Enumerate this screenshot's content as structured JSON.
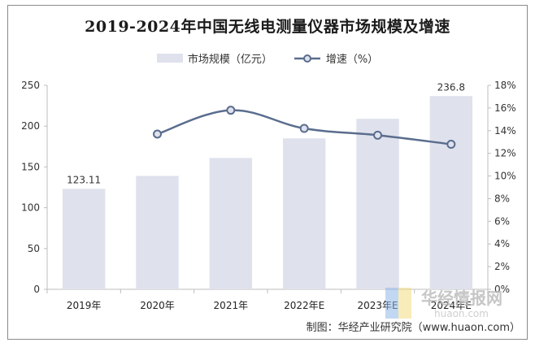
{
  "title": "2019-2024年中国无线电测量仪器市场规模及增速",
  "legend": {
    "bar_label": "市场规模（亿元）",
    "line_label": "增速（%）"
  },
  "source": "制图：华经产业研究院（www.huaon.com）",
  "watermark": {
    "cn": "华经情报网",
    "en": "huaon.com"
  },
  "colors": {
    "bar": "#dfe1ec",
    "line": "#5a6d8e",
    "marker_fill": "#dfe1ec"
  },
  "chart_data": {
    "type": "bar",
    "categories": [
      "2019年",
      "2020年",
      "2021年",
      "2022年E",
      "2023年E",
      "2024年E"
    ],
    "series": [
      {
        "name": "市场规模（亿元）",
        "type": "bar",
        "axis": "left",
        "values": [
          123.11,
          139,
          161,
          185,
          209,
          236.8
        ],
        "data_labels": [
          "123.11",
          null,
          null,
          null,
          null,
          "236.8"
        ]
      },
      {
        "name": "增速（%）",
        "type": "line",
        "axis": "right",
        "values": [
          null,
          13.7,
          15.8,
          14.2,
          13.6,
          12.8
        ]
      }
    ],
    "y_left": {
      "min": 0,
      "max": 250,
      "ticks": [
        "0",
        "50",
        "100",
        "150",
        "200",
        "250"
      ]
    },
    "y_right": {
      "min": 0,
      "max": 18,
      "ticks": [
        "0%",
        "2%",
        "4%",
        "6%",
        "8%",
        "10%",
        "12%",
        "14%",
        "16%",
        "18%"
      ]
    },
    "grid": false,
    "legend_position": "top"
  }
}
